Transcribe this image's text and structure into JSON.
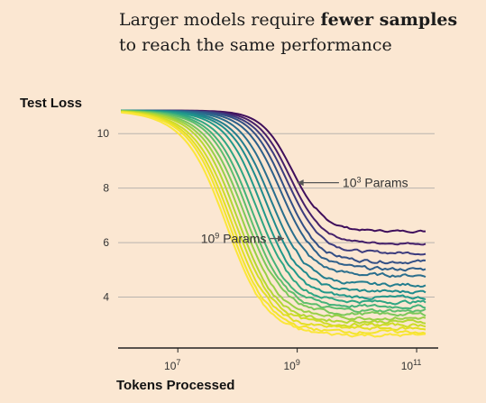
{
  "title": {
    "line1_plain": "Larger models require ",
    "line1_bold": "fewer samples",
    "line2": "to reach the same performance"
  },
  "chart_data": {
    "type": "line",
    "title": "Larger models require fewer samples to reach the same performance",
    "xlabel": "Tokens Processed",
    "ylabel": "Test Loss",
    "x_scale": "log",
    "xlim": [
      1000000,
      200000000000
    ],
    "ylim": [
      2.0,
      11.0
    ],
    "x_ticks": [
      10000000,
      1000000000,
      100000000000
    ],
    "x_tick_labels": [
      {
        "base": "10",
        "exp": "7"
      },
      {
        "base": "10",
        "exp": "9"
      },
      {
        "base": "10",
        "exp": "11"
      }
    ],
    "y_ticks": [
      4,
      6,
      8,
      10
    ],
    "y_tick_labels": [
      "4",
      "6",
      "8",
      "10"
    ],
    "grid": "horizontal",
    "colormap": "viridis",
    "colors": {
      "background": "#fbe7d2",
      "grid": "#b9b4ae",
      "axis": "#222222",
      "arrow": "#555555"
    },
    "curve_model": {
      "start_loss": 10.85,
      "note_x_units": "log10 tokens"
    },
    "series": [
      {
        "color": "#3f0f5c",
        "plateau": 6.42,
        "midpoint": 8.92,
        "width": 0.26,
        "noise": 0.03
      },
      {
        "color": "#45206a",
        "plateau": 5.97,
        "midpoint": 8.88,
        "width": 0.27,
        "noise": 0.03
      },
      {
        "color": "#3d3c7e",
        "plateau": 5.62,
        "midpoint": 8.84,
        "width": 0.28,
        "noise": 0.04
      },
      {
        "color": "#334f85",
        "plateau": 5.3,
        "midpoint": 8.78,
        "width": 0.28,
        "noise": 0.05
      },
      {
        "color": "#2d5f8a",
        "plateau": 5.02,
        "midpoint": 8.72,
        "width": 0.29,
        "noise": 0.05
      },
      {
        "color": "#2a6e8d",
        "plateau": 4.8,
        "midpoint": 8.62,
        "width": 0.29,
        "noise": 0.05
      },
      {
        "color": "#237d8e",
        "plateau": 4.45,
        "midpoint": 8.55,
        "width": 0.3,
        "noise": 0.05
      },
      {
        "color": "#1f8b8c",
        "plateau": 4.2,
        "midpoint": 8.48,
        "width": 0.3,
        "noise": 0.05
      },
      {
        "color": "#22998a",
        "plateau": 3.98,
        "midpoint": 8.4,
        "width": 0.3,
        "noise": 0.05
      },
      {
        "color": "#2fa683",
        "plateau": 3.82,
        "midpoint": 8.32,
        "width": 0.31,
        "noise": 0.05
      },
      {
        "color": "#44b279",
        "plateau": 3.65,
        "midpoint": 8.24,
        "width": 0.31,
        "noise": 0.05
      },
      {
        "color": "#5ebe6c",
        "plateau": 3.5,
        "midpoint": 8.18,
        "width": 0.31,
        "noise": 0.05
      },
      {
        "color": "#7bc85a",
        "plateau": 3.37,
        "midpoint": 8.12,
        "width": 0.32,
        "noise": 0.05
      },
      {
        "color": "#98d046",
        "plateau": 3.23,
        "midpoint": 8.06,
        "width": 0.32,
        "noise": 0.05
      },
      {
        "color": "#b4d733",
        "plateau": 3.1,
        "midpoint": 8.0,
        "width": 0.32,
        "noise": 0.05
      },
      {
        "color": "#cedc27",
        "plateau": 2.97,
        "midpoint": 7.95,
        "width": 0.33,
        "noise": 0.05
      },
      {
        "color": "#e3df24",
        "plateau": 2.85,
        "midpoint": 7.9,
        "width": 0.33,
        "noise": 0.05
      },
      {
        "color": "#f3e42d",
        "plateau": 2.72,
        "midpoint": 7.86,
        "width": 0.33,
        "noise": 0.05
      },
      {
        "color": "#fbe63a",
        "plateau": 2.6,
        "midpoint": 7.82,
        "width": 0.34,
        "noise": 0.05
      }
    ],
    "annotations": [
      {
        "base": "10",
        "exp": "3",
        "suffix": " Params",
        "label": "10³ Params",
        "arrow_from": {
          "x": 5000000000,
          "y": 8.2
        },
        "arrow_to": {
          "x": 1000000000,
          "y": 8.2
        }
      },
      {
        "base": "10",
        "exp": "9",
        "suffix": " Params",
        "label": "10⁹ Params",
        "arrow_from": {
          "x": 350000000,
          "y": 6.15
        },
        "arrow_to": {
          "x": 600000000,
          "y": 6.15
        }
      }
    ]
  }
}
